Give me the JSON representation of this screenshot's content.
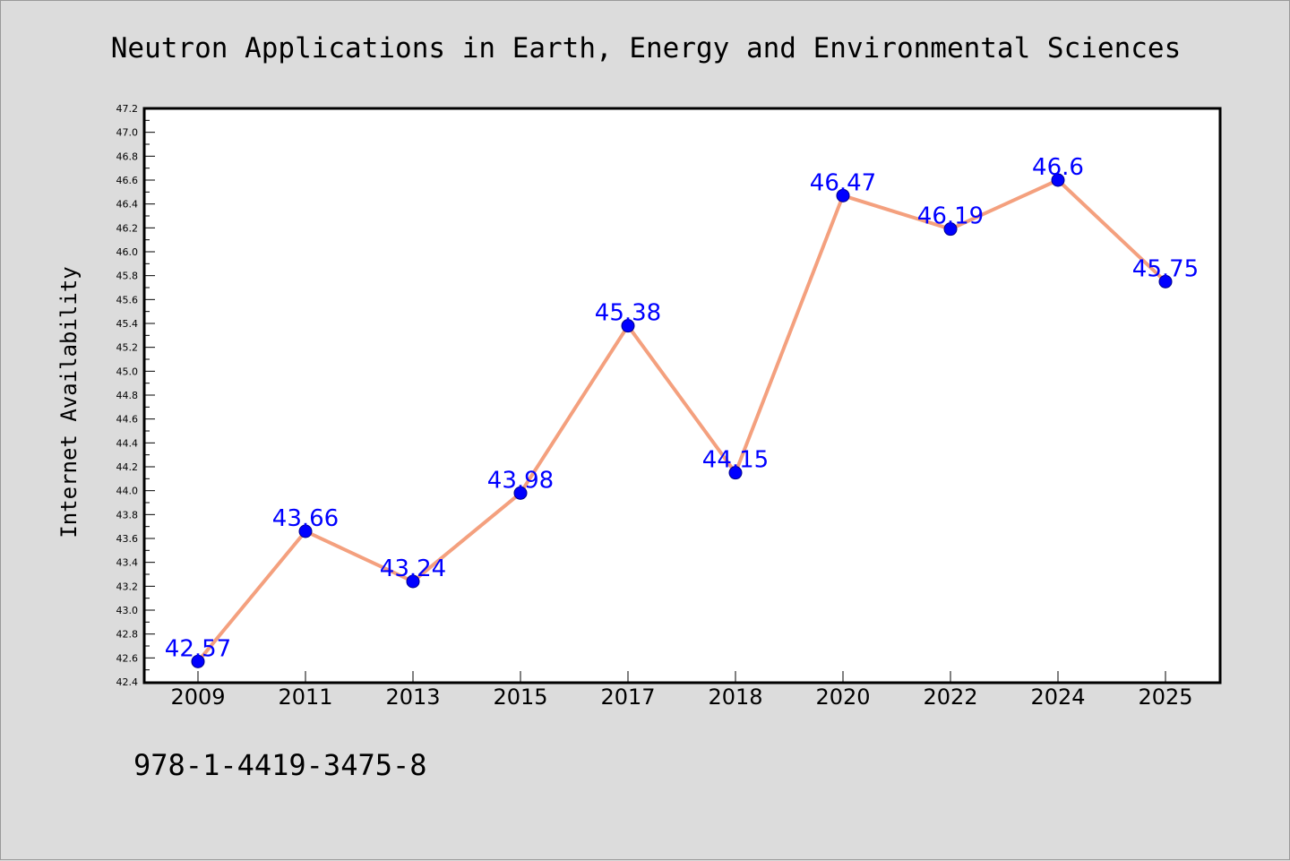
{
  "chart_data": {
    "type": "line",
    "title": "Neutron Applications in Earth, Energy and Environmental Sciences",
    "xlabel": "",
    "ylabel": "Internet Availability",
    "categories": [
      "2009",
      "2011",
      "2013",
      "2015",
      "2017",
      "2018",
      "2020",
      "2022",
      "2024",
      "2025"
    ],
    "series": [
      {
        "values": [
          42.57,
          43.66,
          43.24,
          43.98,
          45.38,
          44.15,
          46.47,
          46.19,
          46.6,
          45.75
        ],
        "labels": [
          "42.57",
          "43.66",
          "43.24",
          "43.98",
          "45.38",
          "44.15",
          "46.47",
          "46.19",
          "46.6",
          "45.75"
        ],
        "line_color": "#f4a07e",
        "marker_color": "#0000ff"
      }
    ],
    "ylim": [
      42.4,
      47.2
    ],
    "yticks": [
      "42.4",
      "42.6",
      "42.8",
      "43.0",
      "43.2",
      "43.4",
      "43.6",
      "43.8",
      "44.0",
      "44.2",
      "44.4",
      "44.6",
      "44.8",
      "45.0",
      "45.2",
      "45.4",
      "45.6",
      "45.8",
      "46.0",
      "46.2",
      "46.4",
      "46.6",
      "46.8",
      "47.0",
      "47.2"
    ],
    "grid": false,
    "legend": "none"
  },
  "footnote": "978-1-4419-3475-8",
  "colors": {
    "background": "#dcdcdc",
    "plot_background": "#ffffff",
    "label_color": "#0000ff"
  }
}
